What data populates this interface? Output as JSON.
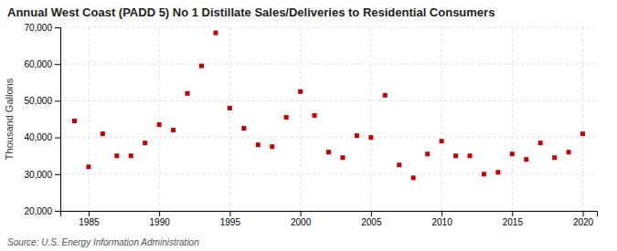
{
  "chart_data": {
    "type": "scatter",
    "title": "Annual West Coast (PADD 5) No 1 Distillate Sales/Deliveries to Residential Consumers",
    "ylabel": "Thousand Gallons",
    "source": "Source: U.S. Energy Information Administration",
    "x": [
      1984,
      1985,
      1986,
      1987,
      1988,
      1989,
      1990,
      1991,
      1992,
      1993,
      1994,
      1995,
      1996,
      1997,
      1998,
      1999,
      2000,
      2001,
      2002,
      2003,
      2004,
      2005,
      2006,
      2007,
      2008,
      2009,
      2010,
      2011,
      2012,
      2013,
      2014,
      2015,
      2016,
      2017,
      2018,
      2019,
      2020
    ],
    "values": [
      44500,
      32000,
      41000,
      35000,
      35000,
      38500,
      43500,
      42000,
      52000,
      59500,
      68500,
      48000,
      42500,
      38000,
      37500,
      45500,
      52500,
      46000,
      36000,
      34500,
      40500,
      40000,
      51500,
      32500,
      29000,
      35500,
      39000,
      35000,
      35000,
      30000,
      30500,
      35500,
      34000,
      38500,
      34500,
      36000,
      41000
    ],
    "color": "#cc0000",
    "marker": "square",
    "grid": true,
    "xlim": [
      1983,
      2021
    ],
    "ylim": [
      20000,
      70000
    ],
    "xticks": [
      1985,
      1990,
      1995,
      2000,
      2005,
      2010,
      2015,
      2020
    ],
    "yticks": [
      {
        "value": 20000,
        "label": "20,000"
      },
      {
        "value": 30000,
        "label": "30,000"
      },
      {
        "value": 40000,
        "label": "40,000"
      },
      {
        "value": 50000,
        "label": "50,000"
      },
      {
        "value": 60000,
        "label": "60,000"
      },
      {
        "value": 70000,
        "label": "70,000"
      }
    ]
  }
}
